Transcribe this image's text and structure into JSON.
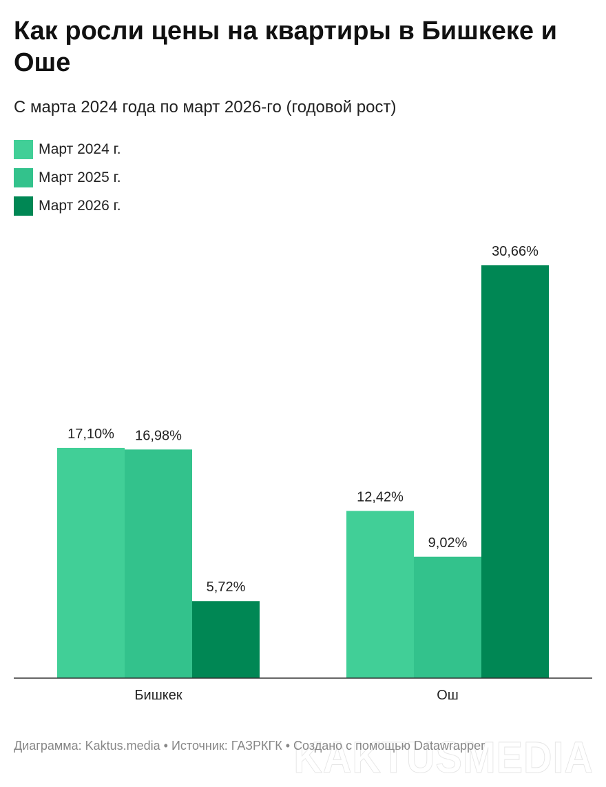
{
  "title": "Как росли цены на квартиры в Бишкеке и Оше",
  "subtitle": "С марта 2024 года по март 2026-го (годовой рост)",
  "footer": "Диаграмма: Kaktus.media • Источник: ГАЗРКГК • Создано с помощью Datawrapper",
  "watermark": "KAKTUSMEDIA",
  "chart_data": {
    "type": "bar",
    "title": "Как росли цены на квартиры в Бишкеке и Оше",
    "categories": [
      "Бишкек",
      "Ош"
    ],
    "series": [
      {
        "name": "Март 2024 г.",
        "color": "#41cf97",
        "values": [
          17.1,
          12.42
        ],
        "labels": [
          "17,10%",
          "12,42%"
        ]
      },
      {
        "name": "Март 2025 г.",
        "color": "#33c28c",
        "values": [
          16.98,
          9.02
        ],
        "labels": [
          "16,98%",
          "9,02%"
        ]
      },
      {
        "name": "Март 2026 г.",
        "color": "#008754",
        "values": [
          5.72,
          30.66
        ],
        "labels": [
          "5,72%",
          "30,66%"
        ]
      }
    ],
    "ylim": [
      0,
      30.66
    ],
    "legend": "top-left",
    "grid": false
  }
}
